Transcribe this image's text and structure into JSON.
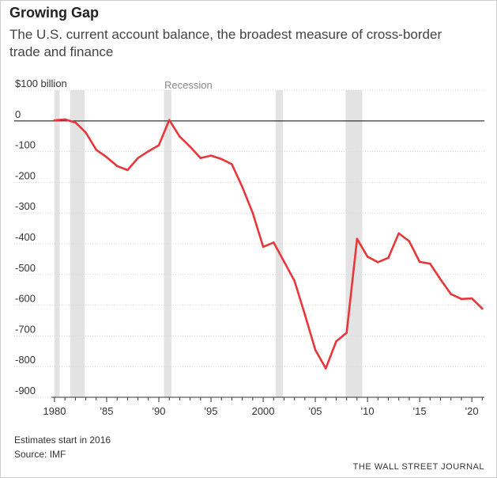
{
  "colors": {
    "line": "#e8373a",
    "recession": "#e3e3e3",
    "grid": "#d6d6d6",
    "zero": "#222222"
  },
  "header": {
    "title": "Growing Gap",
    "subtitle": "The U.S. current account balance, the broadest measure of cross-border trade and finance"
  },
  "footer": {
    "note": "Estimates start in 2016",
    "source": "Source: IMF",
    "publisher": "THE WALL STREET JOURNAL"
  },
  "chart_data": {
    "type": "line",
    "title": "Growing Gap",
    "ylabel": "$100 billion",
    "ylim": [
      -900,
      100
    ],
    "xlim": [
      1979.7,
      2021.2
    ],
    "y_ticks": [
      100,
      0,
      -100,
      -200,
      -300,
      -400,
      -500,
      -600,
      -700,
      -800,
      -900
    ],
    "y_tick_labels": [
      "$100 billion",
      "0",
      "-100",
      "-200",
      "-300",
      "-400",
      "-500",
      "-600",
      "-700",
      "-800",
      "-900"
    ],
    "x_ticks": [
      1980,
      1985,
      1990,
      1995,
      2000,
      2005,
      2010,
      2015,
      2020
    ],
    "x_tick_labels": [
      "1980",
      "'85",
      "'90",
      "'95",
      "2000",
      "'05",
      "'10",
      "'15",
      "'20"
    ],
    "grid": true,
    "recession_label": "Recession",
    "recessions": [
      [
        1980.0,
        1980.5
      ],
      [
        1981.5,
        1982.9
      ],
      [
        1990.5,
        1991.2
      ],
      [
        2001.2,
        2001.9
      ],
      [
        2007.9,
        2009.5
      ]
    ],
    "series": [
      {
        "x": [
          1980,
          1981,
          1982,
          1983,
          1984,
          1985,
          1986,
          1987,
          1988,
          1989,
          1990,
          1991,
          1992,
          1993,
          1994,
          1995,
          1996,
          1997,
          1998,
          1999,
          2000,
          2001,
          2002,
          2003,
          2004,
          2005,
          2006,
          2007,
          2008,
          2009,
          2010,
          2011,
          2012,
          2013,
          2014,
          2015,
          2016,
          2017,
          2018,
          2019,
          2020,
          2021
        ],
        "values": [
          2,
          5,
          -5,
          -38,
          -94,
          -118,
          -147,
          -160,
          -121,
          -99,
          -79,
          3,
          -51,
          -84,
          -121,
          -113,
          -124,
          -141,
          -215,
          -300,
          -410,
          -396,
          -458,
          -521,
          -631,
          -746,
          -806,
          -718,
          -690,
          -384,
          -442,
          -460,
          -446,
          -366,
          -392,
          -459,
          -465,
          -516,
          -564,
          -580,
          -578,
          -611
        ]
      }
    ]
  }
}
